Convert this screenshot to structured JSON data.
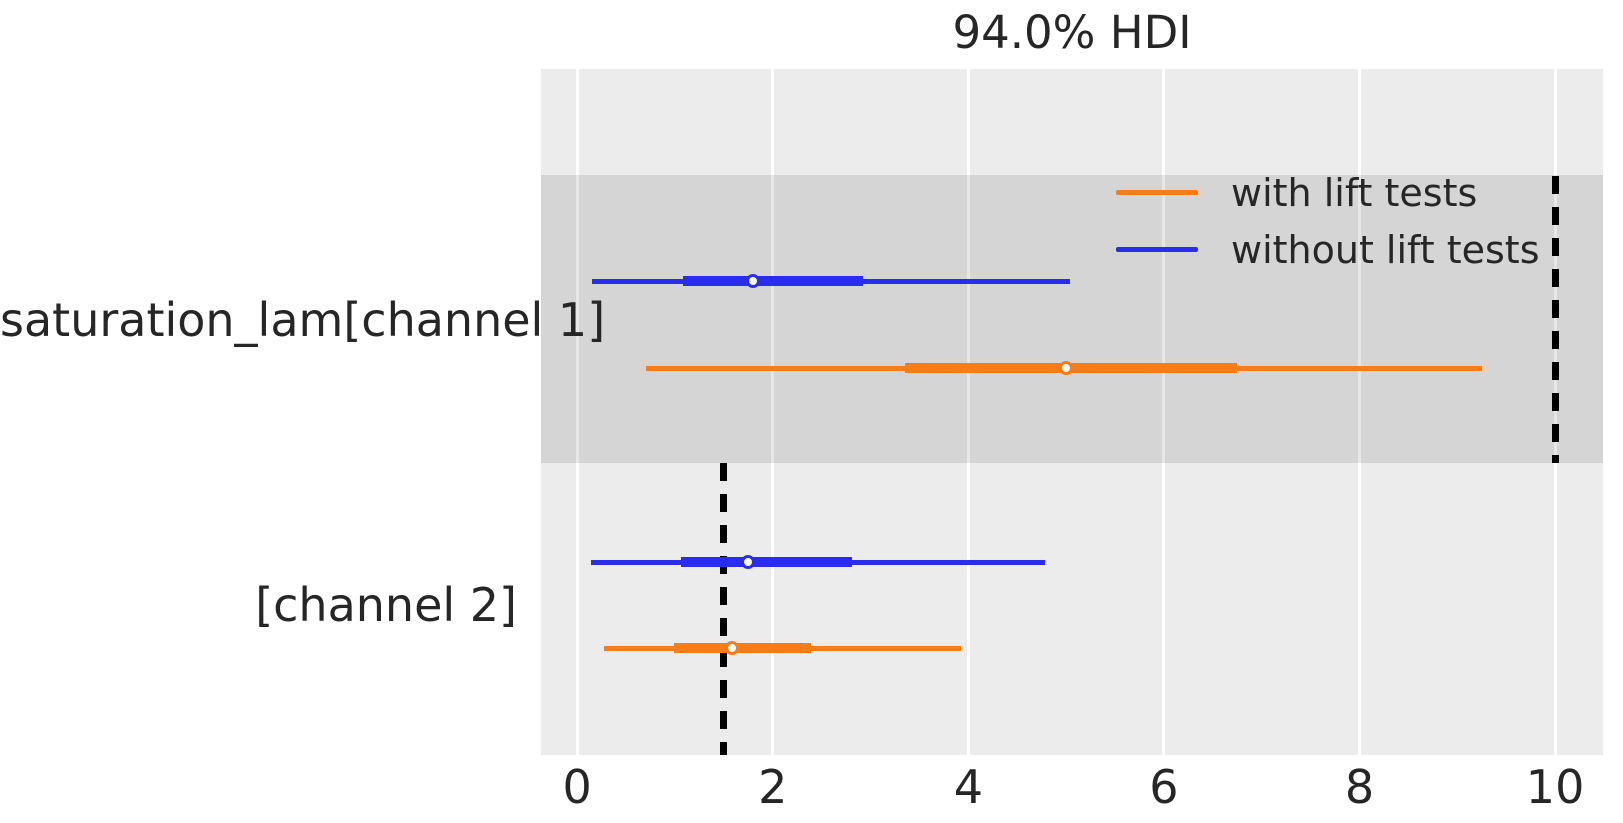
{
  "chart_data": {
    "type": "forest",
    "title": "94.0% HDI",
    "xlabel": "",
    "ylabel": "",
    "x_ticks": [
      0,
      2,
      4,
      6,
      8,
      10
    ],
    "xlim": [
      -0.37,
      10.49
    ],
    "grid": "vertical white gridlines on",
    "legend": {
      "position": "upper-left",
      "entries": [
        {
          "label": "with lift tests",
          "color": "#fa7c17"
        },
        {
          "label": "without lift tests",
          "color": "#2a2eec"
        }
      ]
    },
    "rows": [
      {
        "label": "saturation_lam[channel 1]",
        "shaded_band": true,
        "reference_line_x": 10.0,
        "intervals": [
          {
            "series": "without lift tests",
            "color": "#2a2eec",
            "hdi_94": [
              0.15,
              5.04
            ],
            "hdi_thick": [
              1.08,
              2.92
            ],
            "point": 1.8
          },
          {
            "series": "with lift tests",
            "color": "#fa7c17",
            "hdi_94": [
              0.7,
              9.25
            ],
            "hdi_thick": [
              3.35,
              6.75
            ],
            "point": 5.0
          }
        ]
      },
      {
        "label": "[channel 2]",
        "shaded_band": false,
        "reference_line_x": 1.5,
        "intervals": [
          {
            "series": "without lift tests",
            "color": "#2a2eec",
            "hdi_94": [
              0.14,
              4.78
            ],
            "hdi_thick": [
              1.06,
              2.81
            ],
            "point": 1.75
          },
          {
            "series": "with lift tests",
            "color": "#fa7c17",
            "hdi_94": [
              0.27,
              3.92
            ],
            "hdi_thick": [
              0.99,
              2.39
            ],
            "point": 1.58
          }
        ]
      }
    ],
    "colors": {
      "plot_background": "#ececec",
      "figure_background": "#ffffff",
      "band": "rgba(0,0,0,0.095)",
      "gridline": "#ffffff",
      "reference_line": "#000000",
      "text": "#262626",
      "marker_fill": "#fdfdfd"
    }
  }
}
